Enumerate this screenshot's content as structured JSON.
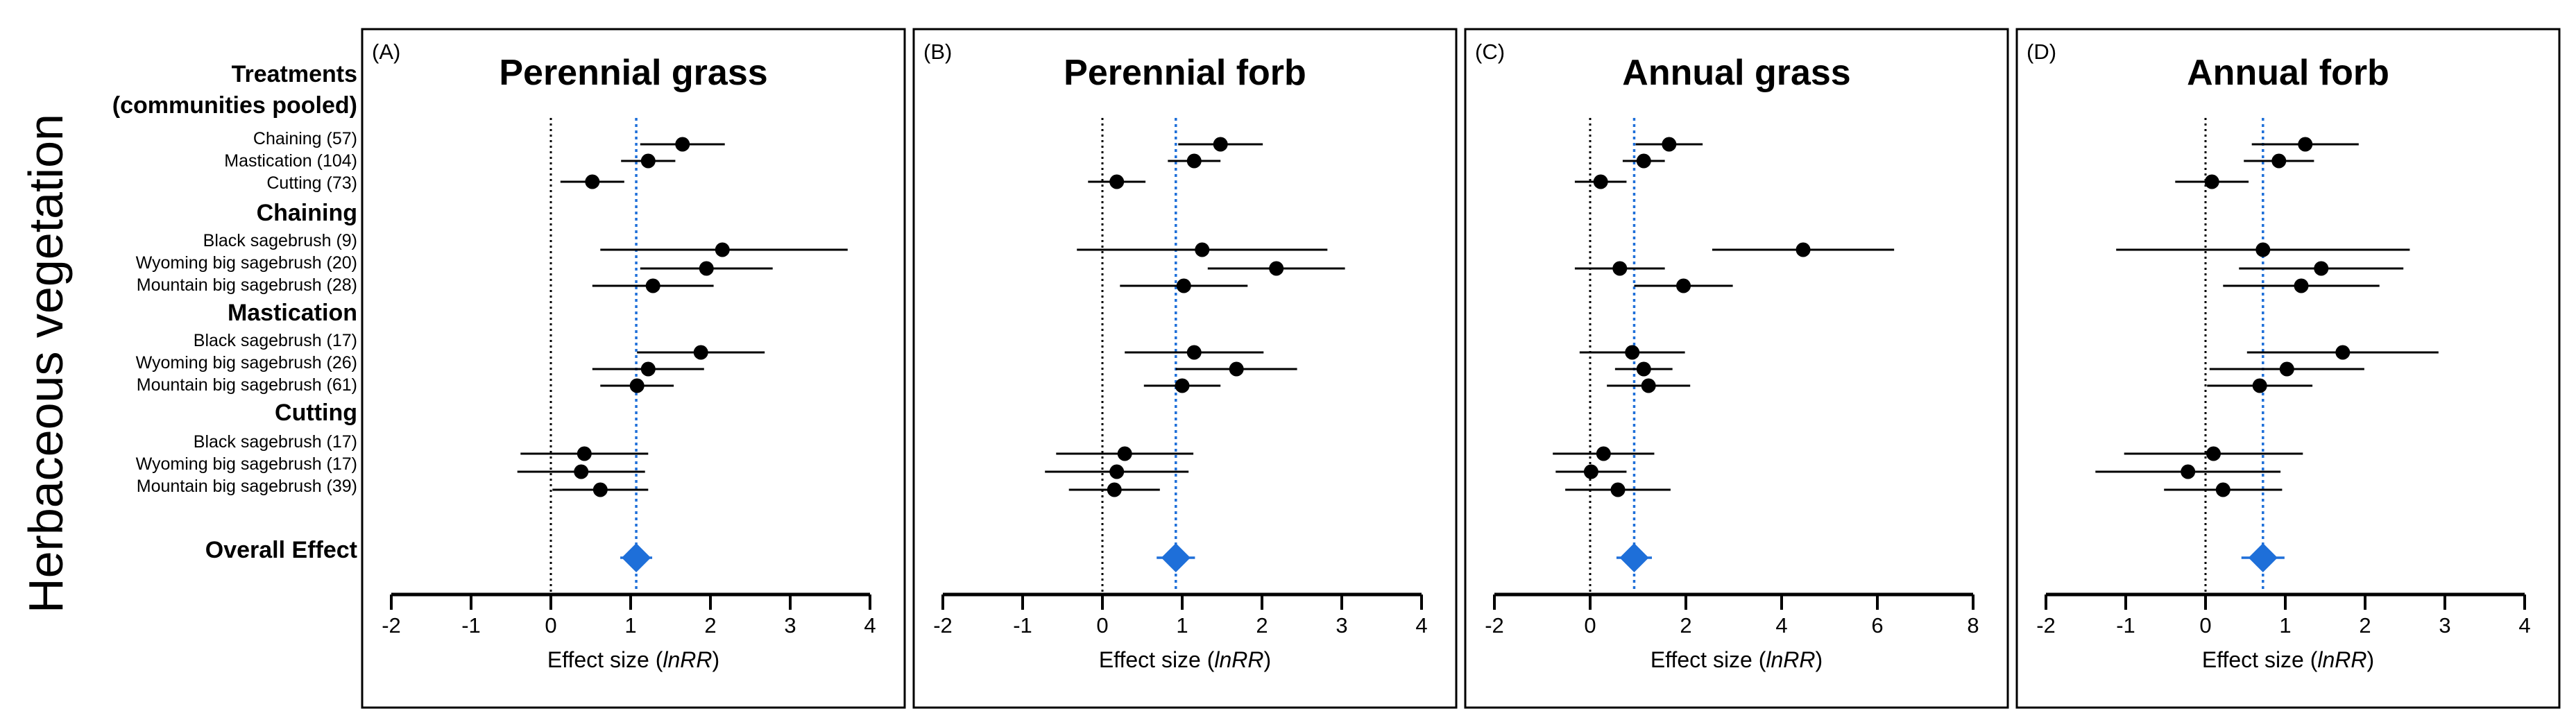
{
  "figure": {
    "ylabel": "Herbaceous vegetation",
    "xlabel_prefix": "Effect size (",
    "xlabel_italic": "lnRR",
    "xlabel_suffix": ")"
  },
  "row_labels": {
    "header_line1": "Treatments",
    "header_line2": "(communities pooled)",
    "pooled": [
      "Chaining (57)",
      "Mastication (104)",
      "Cutting (73)"
    ],
    "chaining_head": "Chaining",
    "chaining": [
      "Black sagebrush (9)",
      "Wyoming big sagebrush (20)",
      "Mountain big sagebrush (28)"
    ],
    "mastication_head": "Mastication",
    "mastication": [
      "Black sagebrush (17)",
      "Wyoming big sagebrush (26)",
      "Mountain big sagebrush (61)"
    ],
    "cutting_head": "Cutting",
    "cutting": [
      "Black sagebrush (17)",
      "Wyoming big sagebrush (17)",
      "Mountain big sagebrush (39)"
    ],
    "overall": "Overall Effect"
  },
  "colors": {
    "accent": "#1e6fd9",
    "point": "#000000",
    "zero_line": "#000000"
  },
  "chart_data": [
    {
      "type": "forest",
      "panel": "(A)",
      "title": "Perennial grass",
      "xlim": [
        -2,
        4
      ],
      "ticks": [
        -2,
        -1,
        0,
        1,
        2,
        3,
        4
      ],
      "overall": {
        "est": 1.07,
        "lo": 0.87,
        "hi": 1.27
      },
      "estimates": [
        {
          "est": 1.65,
          "lo": 1.12,
          "hi": 2.18
        },
        {
          "est": 1.22,
          "lo": 0.88,
          "hi": 1.56
        },
        {
          "est": 0.52,
          "lo": 0.12,
          "hi": 0.92
        },
        {
          "est": 2.15,
          "lo": 0.62,
          "hi": 3.72
        },
        {
          "est": 1.95,
          "lo": 1.12,
          "hi": 2.78
        },
        {
          "est": 1.28,
          "lo": 0.52,
          "hi": 2.04
        },
        {
          "est": 1.88,
          "lo": 1.08,
          "hi": 2.68
        },
        {
          "est": 1.22,
          "lo": 0.52,
          "hi": 1.92
        },
        {
          "est": 1.08,
          "lo": 0.62,
          "hi": 1.54
        },
        {
          "est": 0.42,
          "lo": -0.38,
          "hi": 1.22
        },
        {
          "est": 0.38,
          "lo": -0.42,
          "hi": 1.18
        },
        {
          "est": 0.62,
          "lo": 0.02,
          "hi": 1.22
        }
      ]
    },
    {
      "type": "forest",
      "panel": "(B)",
      "title": "Perennial forb",
      "xlim": [
        -2,
        4
      ],
      "ticks": [
        -2,
        -1,
        0,
        1,
        2,
        3,
        4
      ],
      "overall": {
        "est": 0.92,
        "lo": 0.68,
        "hi": 1.16
      },
      "estimates": [
        {
          "est": 1.48,
          "lo": 0.95,
          "hi": 2.01
        },
        {
          "est": 1.15,
          "lo": 0.82,
          "hi": 1.48
        },
        {
          "est": 0.18,
          "lo": -0.18,
          "hi": 0.54
        },
        {
          "est": 1.25,
          "lo": -0.32,
          "hi": 2.82
        },
        {
          "est": 2.18,
          "lo": 1.32,
          "hi": 3.04
        },
        {
          "est": 1.02,
          "lo": 0.22,
          "hi": 1.82
        },
        {
          "est": 1.15,
          "lo": 0.28,
          "hi": 2.02
        },
        {
          "est": 1.68,
          "lo": 0.92,
          "hi": 2.44
        },
        {
          "est": 1.0,
          "lo": 0.52,
          "hi": 1.48
        },
        {
          "est": 0.28,
          "lo": -0.58,
          "hi": 1.14
        },
        {
          "est": 0.18,
          "lo": -0.72,
          "hi": 1.08
        },
        {
          "est": 0.15,
          "lo": -0.42,
          "hi": 0.72
        }
      ]
    },
    {
      "type": "forest",
      "panel": "(C)",
      "title": "Annual grass",
      "xlim": [
        -2,
        8
      ],
      "ticks": [
        -2,
        0,
        2,
        4,
        6,
        8
      ],
      "overall": {
        "est": 0.92,
        "lo": 0.55,
        "hi": 1.29
      },
      "estimates": [
        {
          "est": 1.65,
          "lo": 0.95,
          "hi": 2.35
        },
        {
          "est": 1.12,
          "lo": 0.68,
          "hi": 1.56
        },
        {
          "est": 0.22,
          "lo": -0.32,
          "hi": 0.76
        },
        {
          "est": 4.45,
          "lo": 2.55,
          "hi": 6.35
        },
        {
          "est": 0.62,
          "lo": -0.32,
          "hi": 1.56
        },
        {
          "est": 1.95,
          "lo": 0.92,
          "hi": 2.98
        },
        {
          "est": 0.88,
          "lo": -0.22,
          "hi": 1.98
        },
        {
          "est": 1.12,
          "lo": 0.52,
          "hi": 1.72
        },
        {
          "est": 1.22,
          "lo": 0.35,
          "hi": 2.09
        },
        {
          "est": 0.28,
          "lo": -0.78,
          "hi": 1.34
        },
        {
          "est": 0.02,
          "lo": -0.72,
          "hi": 0.76
        },
        {
          "est": 0.58,
          "lo": -0.52,
          "hi": 1.68
        }
      ]
    },
    {
      "type": "forest",
      "panel": "(D)",
      "title": "Annual forb",
      "xlim": [
        -2,
        4
      ],
      "ticks": [
        -2,
        -1,
        0,
        1,
        2,
        3,
        4
      ],
      "overall": {
        "est": 0.72,
        "lo": 0.45,
        "hi": 0.99
      },
      "estimates": [
        {
          "est": 1.25,
          "lo": 0.58,
          "hi": 1.92
        },
        {
          "est": 0.92,
          "lo": 0.48,
          "hi": 1.36
        },
        {
          "est": 0.08,
          "lo": -0.38,
          "hi": 0.54
        },
        {
          "est": 0.72,
          "lo": -1.12,
          "hi": 2.56
        },
        {
          "est": 1.45,
          "lo": 0.42,
          "hi": 2.48
        },
        {
          "est": 1.2,
          "lo": 0.22,
          "hi": 2.18
        },
        {
          "est": 1.72,
          "lo": 0.52,
          "hi": 2.92
        },
        {
          "est": 1.02,
          "lo": 0.05,
          "hi": 1.99
        },
        {
          "est": 0.68,
          "lo": 0.02,
          "hi": 1.34
        },
        {
          "est": 0.1,
          "lo": -1.02,
          "hi": 1.22
        },
        {
          "est": -0.22,
          "lo": -1.38,
          "hi": 0.94
        },
        {
          "est": 0.22,
          "lo": -0.52,
          "hi": 0.96
        }
      ]
    }
  ]
}
